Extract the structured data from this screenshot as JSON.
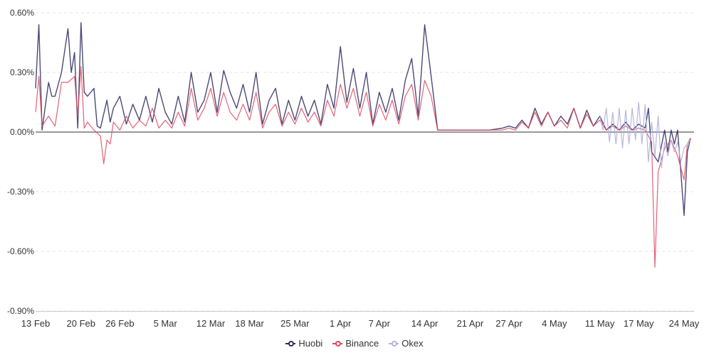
{
  "chart_data": {
    "type": "line",
    "ylim": [
      -0.009,
      0.006
    ],
    "y_ticks": [
      "0.60%",
      "0.30%",
      "0.00%",
      "-0.30%",
      "-0.60%",
      "-0.90%"
    ],
    "x_ticks": [
      "13 Feb",
      "20 Feb",
      "26 Feb",
      "5 Mar",
      "12 Mar",
      "18 Mar",
      "25 Mar",
      "1 Apr",
      "7 Apr",
      "14 Apr",
      "21 Apr",
      "27 Apr",
      "4 May",
      "11 May",
      "17 May",
      "24 May"
    ],
    "grid": true,
    "legend_position": "bottom",
    "series": [
      {
        "name": "Huobi",
        "color": "#2b2a5e",
        "points": [
          [
            "13 Feb",
            0.0022
          ],
          [
            "13 Feb",
            0.0054
          ],
          [
            "14 Feb",
            0.0001
          ],
          [
            "15 Feb",
            0.0025
          ],
          [
            "15 Feb",
            0.0018
          ],
          [
            "16 Feb",
            0.0018
          ],
          [
            "17 Feb",
            0.003
          ],
          [
            "18 Feb",
            0.0052
          ],
          [
            "18 Feb",
            0.003
          ],
          [
            "19 Feb",
            0.004
          ],
          [
            "19 Feb",
            0.0002
          ],
          [
            "20 Feb",
            0.0055
          ],
          [
            "20 Feb",
            0.002
          ],
          [
            "21 Feb",
            0.0018
          ],
          [
            "22 Feb",
            0.0022
          ],
          [
            "22 Feb",
            0.0003
          ],
          [
            "23 Feb",
            0.0002
          ],
          [
            "24 Feb",
            0.0016
          ],
          [
            "24 Feb",
            0.0005
          ],
          [
            "25 Feb",
            0.0012
          ],
          [
            "26 Feb",
            0.0018
          ],
          [
            "27 Feb",
            0.0004
          ],
          [
            "28 Feb",
            0.0014
          ],
          [
            "1 Mar",
            0.0006
          ],
          [
            "2 Mar",
            0.0018
          ],
          [
            "3 Mar",
            0.0005
          ],
          [
            "4 Mar",
            0.0022
          ],
          [
            "5 Mar",
            0.001
          ],
          [
            "6 Mar",
            0.0004
          ],
          [
            "7 Mar",
            0.0018
          ],
          [
            "8 Mar",
            0.0005
          ],
          [
            "9 Mar",
            0.003
          ],
          [
            "10 Mar",
            0.001
          ],
          [
            "11 Mar",
            0.0016
          ],
          [
            "12 Mar",
            0.003
          ],
          [
            "13 Mar",
            0.001
          ],
          [
            "14 Mar",
            0.0031
          ],
          [
            "15 Mar",
            0.002
          ],
          [
            "16 Mar",
            0.0012
          ],
          [
            "17 Mar",
            0.0024
          ],
          [
            "18 Mar",
            0.001
          ],
          [
            "19 Mar",
            0.003
          ],
          [
            "20 Mar",
            0.0004
          ],
          [
            "21 Mar",
            0.0016
          ],
          [
            "22 Mar",
            0.0022
          ],
          [
            "23 Mar",
            0.0004
          ],
          [
            "24 Mar",
            0.0016
          ],
          [
            "25 Mar",
            0.0006
          ],
          [
            "26 Mar",
            0.0018
          ],
          [
            "27 Mar",
            0.0008
          ],
          [
            "28 Mar",
            0.0016
          ],
          [
            "29 Mar",
            0.0004
          ],
          [
            "30 Mar",
            0.0024
          ],
          [
            "31 Mar",
            0.0012
          ],
          [
            "1 Apr",
            0.0043
          ],
          [
            "2 Apr",
            0.0015
          ],
          [
            "3 Apr",
            0.0032
          ],
          [
            "4 Apr",
            0.0012
          ],
          [
            "5 Apr",
            0.003
          ],
          [
            "6 Apr",
            0.0004
          ],
          [
            "7 Apr",
            0.002
          ],
          [
            "8 Apr",
            0.001
          ],
          [
            "9 Apr",
            0.0022
          ],
          [
            "10 Apr",
            0.0006
          ],
          [
            "11 Apr",
            0.0026
          ],
          [
            "12 Apr",
            0.0037
          ],
          [
            "13 Apr",
            0.0008
          ],
          [
            "14 Apr",
            0.0054
          ],
          [
            "15 Apr",
            0.0028
          ],
          [
            "16 Apr",
            0.0001
          ],
          [
            "17 Apr",
            0.0001
          ],
          [
            "20 Apr",
            0.0001
          ],
          [
            "24 Apr",
            0.0001
          ],
          [
            "26 Apr",
            0.0002
          ],
          [
            "27 Apr",
            0.0003
          ],
          [
            "28 Apr",
            0.0002
          ],
          [
            "29 Apr",
            0.0006
          ],
          [
            "30 Apr",
            0.0002
          ],
          [
            "1 May",
            0.0012
          ],
          [
            "2 May",
            0.0004
          ],
          [
            "3 May",
            0.001
          ],
          [
            "4 May",
            0.0003
          ],
          [
            "5 May",
            0.0008
          ],
          [
            "6 May",
            0.0004
          ],
          [
            "7 May",
            0.0012
          ],
          [
            "8 May",
            0.0002
          ],
          [
            "9 May",
            0.0011
          ],
          [
            "10 May",
            0.0003
          ],
          [
            "11 May",
            0.0008
          ],
          [
            "12 May",
            0.0001
          ],
          [
            "13 May",
            0.0004
          ],
          [
            "14 May",
            0.0001
          ],
          [
            "15 May",
            0.0005
          ],
          [
            "16 May",
            0.0001
          ],
          [
            "17 May",
            0.0004
          ],
          [
            "18 May",
            0.0002
          ],
          [
            "18 May",
            0.0012
          ],
          [
            "19 May",
            -0.001
          ],
          [
            "20 May",
            -0.0015
          ],
          [
            "21 May",
            0.0001
          ],
          [
            "21 May",
            -0.001
          ],
          [
            "22 May",
            0.0001
          ],
          [
            "22 May",
            -0.0006
          ],
          [
            "23 May",
            0.0001
          ],
          [
            "23 May",
            -0.002
          ],
          [
            "24 May",
            -0.0042
          ],
          [
            "24 May",
            -0.001
          ],
          [
            "25 May",
            -0.0003
          ]
        ]
      },
      {
        "name": "Binance",
        "color": "#e0475e",
        "points": [
          [
            "13 Feb",
            0.001
          ],
          [
            "13 Feb",
            0.0028
          ],
          [
            "14 Feb",
            0.0003
          ],
          [
            "15 Feb",
            0.0008
          ],
          [
            "16 Feb",
            0.0003
          ],
          [
            "17 Feb",
            0.0025
          ],
          [
            "18 Feb",
            0.0025
          ],
          [
            "19 Feb",
            0.0028
          ],
          [
            "19 Feb",
            0.0008
          ],
          [
            "20 Feb",
            0.0033
          ],
          [
            "20 Feb",
            0.0002
          ],
          [
            "21 Feb",
            0.0005
          ],
          [
            "22 Feb",
            0.0001
          ],
          [
            "23 Feb",
            -0.0002
          ],
          [
            "23 Feb",
            -0.0016
          ],
          [
            "24 Feb",
            -0.0004
          ],
          [
            "24 Feb",
            -0.0006
          ],
          [
            "25 Feb",
            0.0005
          ],
          [
            "26 Feb",
            0.0001
          ],
          [
            "27 Feb",
            0.0008
          ],
          [
            "28 Feb",
            0.0002
          ],
          [
            "1 Mar",
            0.0006
          ],
          [
            "2 Mar",
            0.0003
          ],
          [
            "3 Mar",
            0.0012
          ],
          [
            "4 Mar",
            0.0002
          ],
          [
            "5 Mar",
            0.0006
          ],
          [
            "6 Mar",
            0.0002
          ],
          [
            "7 Mar",
            0.001
          ],
          [
            "8 Mar",
            0.0003
          ],
          [
            "9 Mar",
            0.0022
          ],
          [
            "10 Mar",
            0.0006
          ],
          [
            "11 Mar",
            0.0012
          ],
          [
            "12 Mar",
            0.0022
          ],
          [
            "13 Mar",
            0.0008
          ],
          [
            "14 Mar",
            0.002
          ],
          [
            "15 Mar",
            0.001
          ],
          [
            "16 Mar",
            0.0006
          ],
          [
            "17 Mar",
            0.0014
          ],
          [
            "18 Mar",
            0.0006
          ],
          [
            "19 Mar",
            0.002
          ],
          [
            "20 Mar",
            0.0002
          ],
          [
            "21 Mar",
            0.001
          ],
          [
            "22 Mar",
            0.0014
          ],
          [
            "23 Mar",
            0.0003
          ],
          [
            "24 Mar",
            0.001
          ],
          [
            "25 Mar",
            0.0004
          ],
          [
            "26 Mar",
            0.0012
          ],
          [
            "27 Mar",
            0.0005
          ],
          [
            "28 Mar",
            0.001
          ],
          [
            "29 Mar",
            0.0003
          ],
          [
            "30 Mar",
            0.0016
          ],
          [
            "31 Mar",
            0.0008
          ],
          [
            "1 Apr",
            0.0024
          ],
          [
            "2 Apr",
            0.0012
          ],
          [
            "3 Apr",
            0.0022
          ],
          [
            "4 Apr",
            0.0008
          ],
          [
            "5 Apr",
            0.002
          ],
          [
            "6 Apr",
            0.0003
          ],
          [
            "7 Apr",
            0.0014
          ],
          [
            "8 Apr",
            0.0006
          ],
          [
            "9 Apr",
            0.0016
          ],
          [
            "10 Apr",
            0.0004
          ],
          [
            "11 Apr",
            0.0018
          ],
          [
            "12 Apr",
            0.0024
          ],
          [
            "13 Apr",
            0.0006
          ],
          [
            "14 Apr",
            0.0026
          ],
          [
            "15 Apr",
            0.0018
          ],
          [
            "16 Apr",
            0.0001
          ],
          [
            "20 Apr",
            0.0001
          ],
          [
            "24 Apr",
            0.0001
          ],
          [
            "26 Apr",
            0.0001
          ],
          [
            "27 Apr",
            0.0002
          ],
          [
            "28 Apr",
            0.0001
          ],
          [
            "29 Apr",
            0.0005
          ],
          [
            "30 Apr",
            0.0002
          ],
          [
            "1 May",
            0.001
          ],
          [
            "2 May",
            0.0003
          ],
          [
            "3 May",
            0.001
          ],
          [
            "4 May",
            0.0003
          ],
          [
            "5 May",
            0.0006
          ],
          [
            "6 May",
            0.0002
          ],
          [
            "7 May",
            0.0012
          ],
          [
            "8 May",
            0.0002
          ],
          [
            "9 May",
            0.0009
          ],
          [
            "10 May",
            0.0003
          ],
          [
            "11 May",
            0.0006
          ],
          [
            "12 May",
            0.0001
          ],
          [
            "13 May",
            0.0003
          ],
          [
            "14 May",
            0.0001
          ],
          [
            "15 May",
            0.0003
          ],
          [
            "16 May",
            0.0001
          ],
          [
            "17 May",
            0.0002
          ],
          [
            "18 May",
            0.0001
          ],
          [
            "19 May",
            -0.0005
          ],
          [
            "19 May",
            -0.0068
          ],
          [
            "20 May",
            -0.002
          ],
          [
            "21 May",
            -0.0008
          ],
          [
            "22 May",
            -0.0004
          ],
          [
            "23 May",
            -0.0012
          ],
          [
            "24 May",
            -0.0024
          ],
          [
            "24 May",
            -0.0006
          ],
          [
            "25 May",
            -0.0003
          ]
        ]
      },
      {
        "name": "Okex",
        "color": "#b3b3dc",
        "points": [
          [
            "11 May",
            0.0008
          ],
          [
            "11 May",
            0.0001
          ],
          [
            "12 May",
            0.0012
          ],
          [
            "12 May",
            -0.0005
          ],
          [
            "13 May",
            0.001
          ],
          [
            "13 May",
            -0.0006
          ],
          [
            "14 May",
            0.0012
          ],
          [
            "14 May",
            -0.0008
          ],
          [
            "15 May",
            0.0011
          ],
          [
            "15 May",
            -0.0006
          ],
          [
            "16 May",
            0.0012
          ],
          [
            "16 May",
            -0.0004
          ],
          [
            "17 May",
            0.0015
          ],
          [
            "17 May",
            -0.0006
          ],
          [
            "18 May",
            0.0014
          ],
          [
            "18 May",
            -0.0015
          ],
          [
            "19 May",
            0.0005
          ],
          [
            "19 May",
            -0.0012
          ],
          [
            "20 May",
            0.0008
          ],
          [
            "20 May",
            -0.0018
          ],
          [
            "21 May",
            -0.0005
          ],
          [
            "21 May",
            -0.0012
          ],
          [
            "22 May",
            -0.0004
          ],
          [
            "22 May",
            -0.001
          ],
          [
            "23 May",
            -0.0005
          ],
          [
            "23 May",
            -0.0015
          ],
          [
            "24 May",
            -0.0008
          ],
          [
            "25 May",
            -0.0004
          ]
        ]
      }
    ]
  }
}
